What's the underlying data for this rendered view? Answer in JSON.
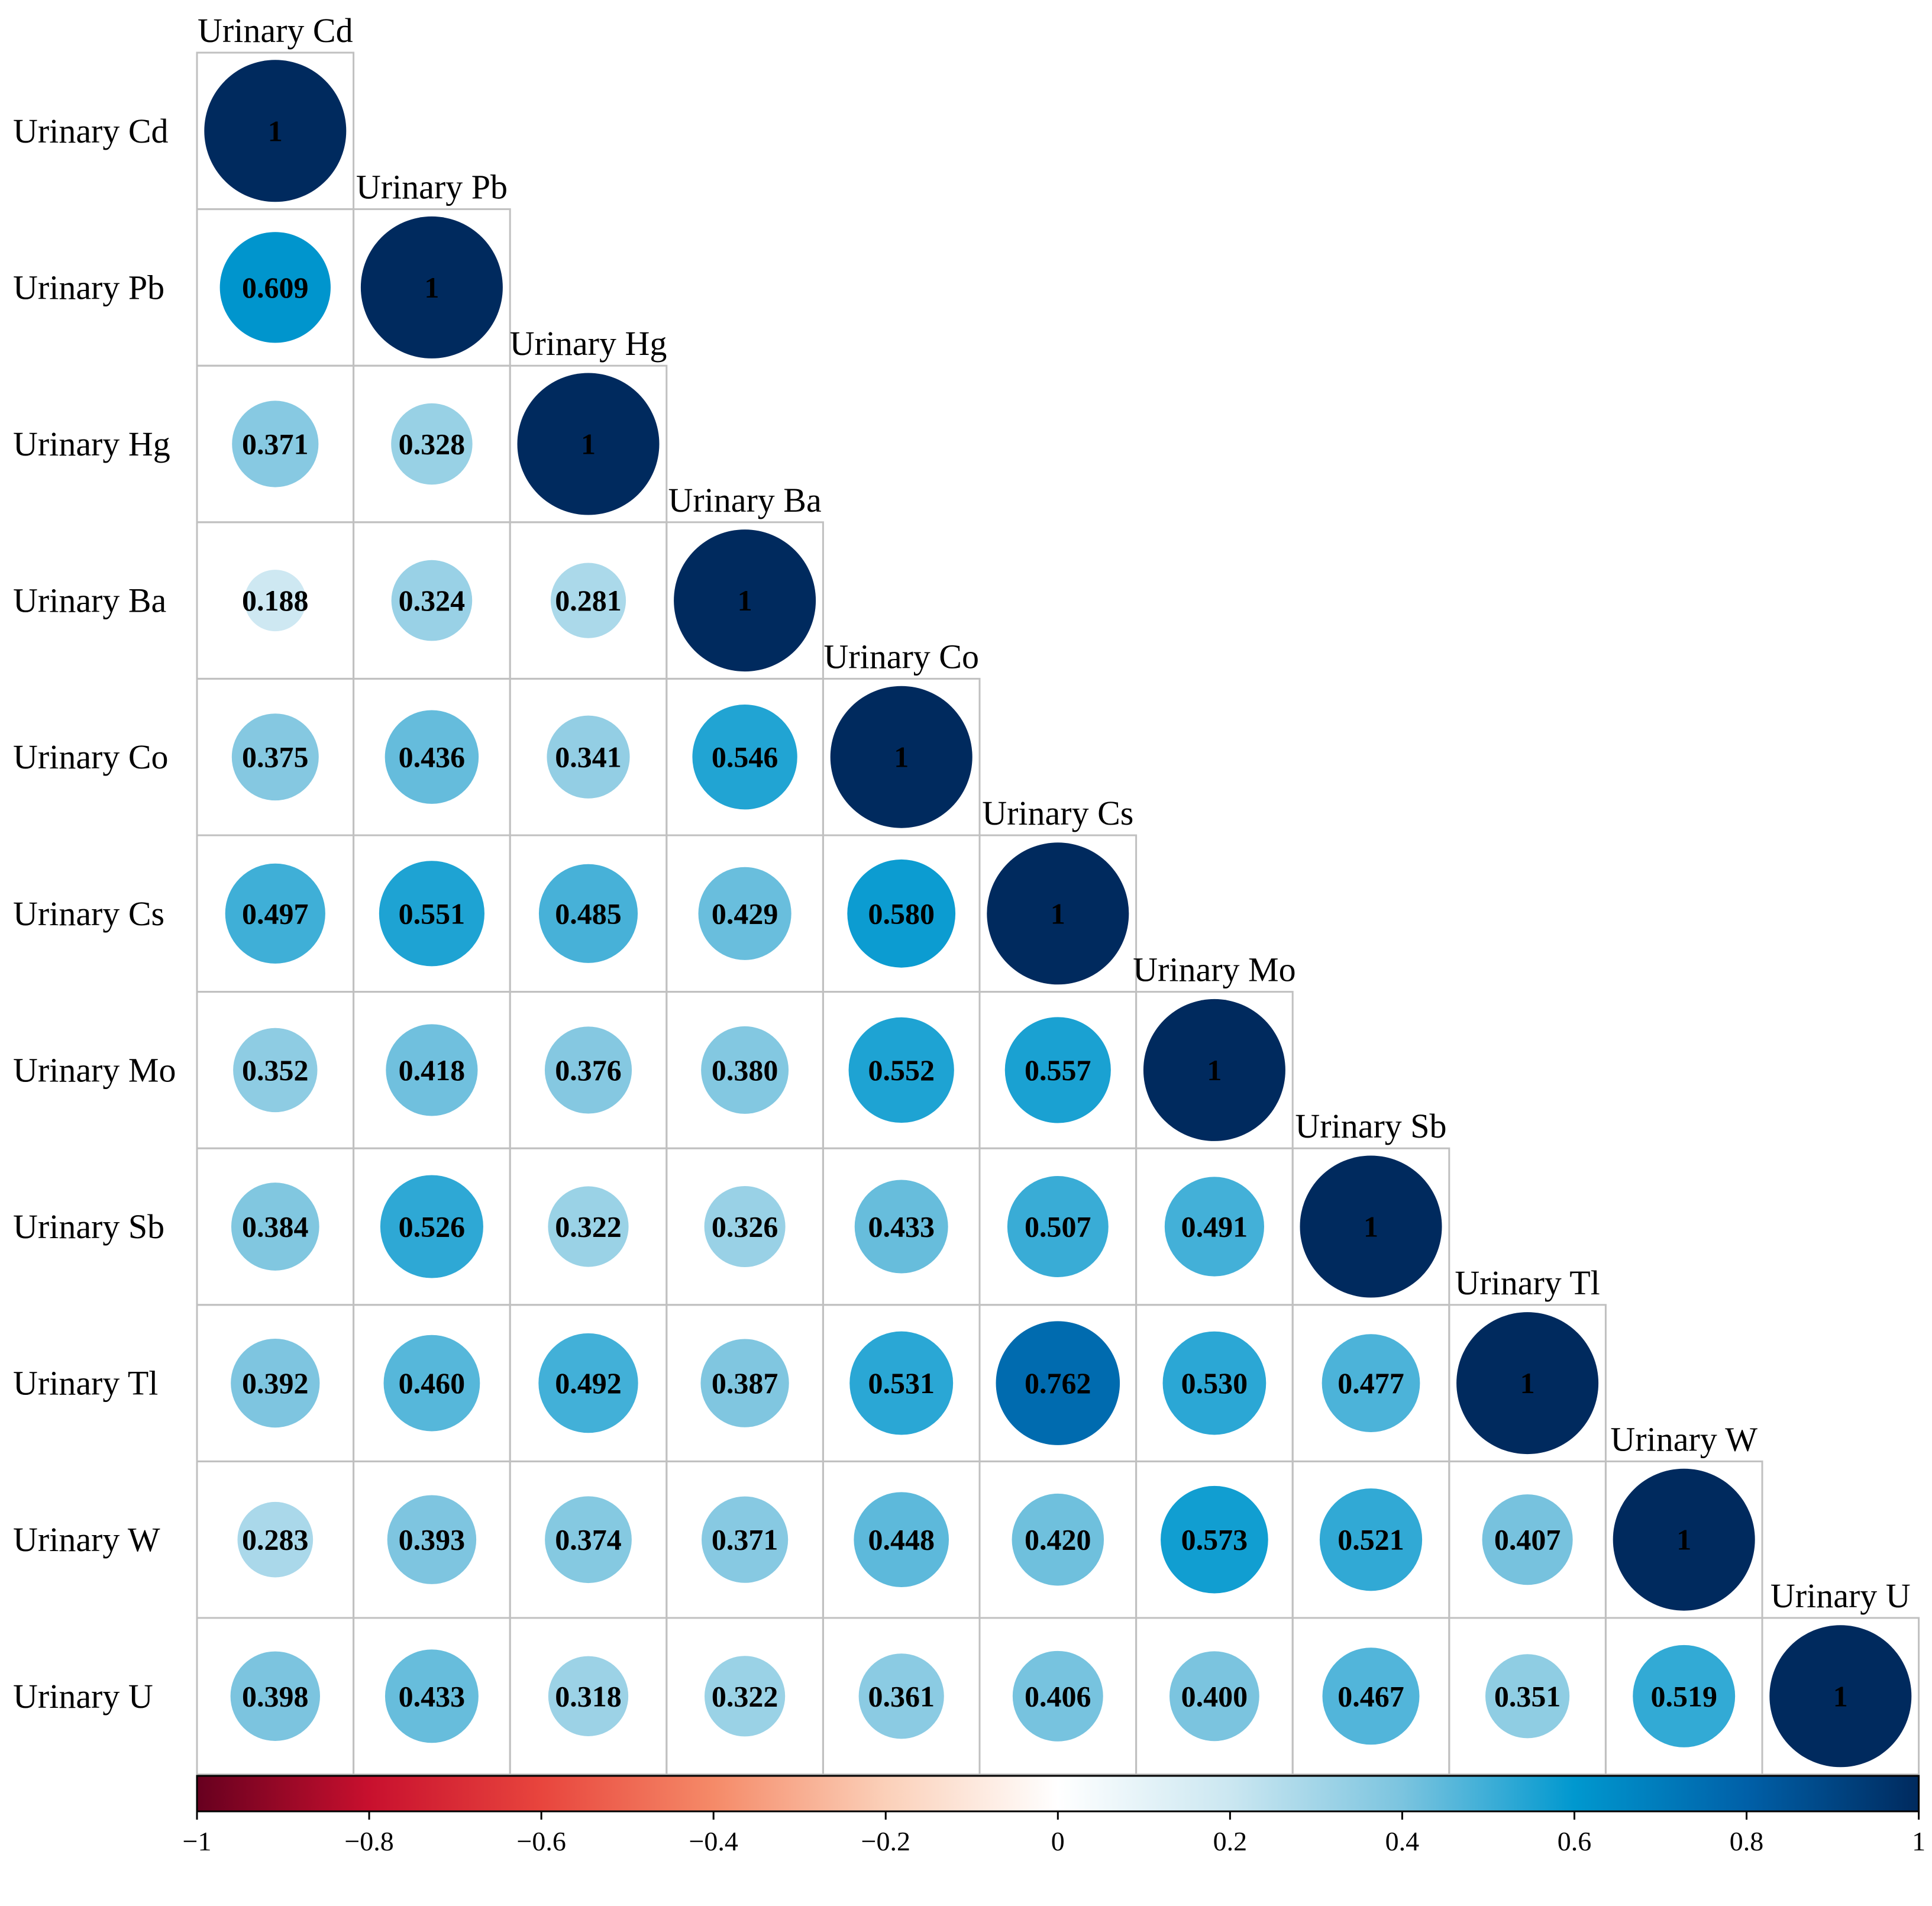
{
  "chart_data": {
    "type": "heatmap",
    "variables": [
      "Urinary Cd",
      "Urinary Pb",
      "Urinary Hg",
      "Urinary Ba",
      "Urinary Co",
      "Urinary Cs",
      "Urinary Mo",
      "Urinary Sb",
      "Urinary Tl",
      "Urinary W",
      "Urinary U"
    ],
    "lower_triangle": [
      [
        "1"
      ],
      [
        "0.609",
        "1"
      ],
      [
        "0.371",
        "0.328",
        "1"
      ],
      [
        "0.188",
        "0.324",
        "0.281",
        "1"
      ],
      [
        "0.375",
        "0.436",
        "0.341",
        "0.546",
        "1"
      ],
      [
        "0.497",
        "0.551",
        "0.485",
        "0.429",
        "0.580",
        "1"
      ],
      [
        "0.352",
        "0.418",
        "0.376",
        "0.380",
        "0.552",
        "0.557",
        "1"
      ],
      [
        "0.384",
        "0.526",
        "0.322",
        "0.326",
        "0.433",
        "0.507",
        "0.491",
        "1"
      ],
      [
        "0.392",
        "0.460",
        "0.492",
        "0.387",
        "0.531",
        "0.762",
        "0.530",
        "0.477",
        "1"
      ],
      [
        "0.283",
        "0.393",
        "0.374",
        "0.371",
        "0.448",
        "0.420",
        "0.573",
        "0.521",
        "0.407",
        "1"
      ],
      [
        "0.398",
        "0.433",
        "0.318",
        "0.322",
        "0.361",
        "0.406",
        "0.400",
        "0.467",
        "0.351",
        "0.519",
        "1"
      ]
    ],
    "color_scale": {
      "range": [
        -1,
        1
      ],
      "ticks": [
        "−1",
        "−0.8",
        "−0.6",
        "−0.4",
        "−0.2",
        "0",
        "0.2",
        "0.4",
        "0.6",
        "0.8",
        "1"
      ],
      "stops": [
        {
          "value": -1.0,
          "color": "#67001f"
        },
        {
          "value": -0.8,
          "color": "#c8102e"
        },
        {
          "value": -0.6,
          "color": "#e8453d"
        },
        {
          "value": -0.4,
          "color": "#f58a68"
        },
        {
          "value": -0.2,
          "color": "#fbd0b9"
        },
        {
          "value": 0.0,
          "color": "#ffffff"
        },
        {
          "value": 0.2,
          "color": "#cbe7f1"
        },
        {
          "value": 0.4,
          "color": "#7bc4df"
        },
        {
          "value": 0.6,
          "color": "#0098cf"
        },
        {
          "value": 0.8,
          "color": "#0060a8"
        },
        {
          "value": 1.0,
          "color": "#002a5e"
        }
      ]
    },
    "grid_color": "#c0c0c0"
  }
}
